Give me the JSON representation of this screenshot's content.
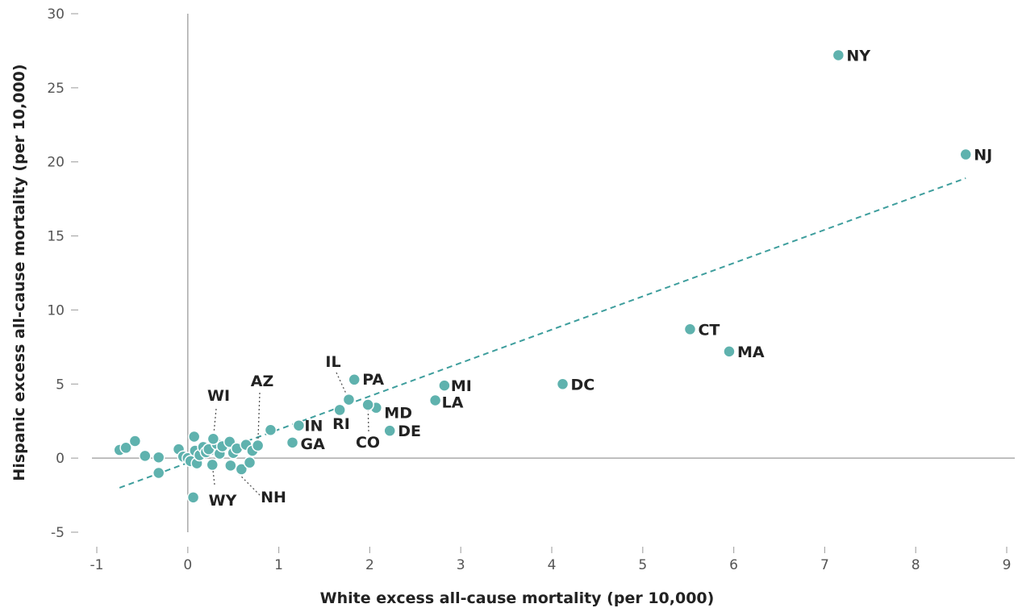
{
  "chart_data": {
    "type": "scatter",
    "xlabel": "White excess all-cause mortality (per 10,000)",
    "ylabel": "Hispanic excess all-cause mortality (per 10,000)",
    "xlim": [
      -1,
      9
    ],
    "ylim": [
      -5,
      30
    ],
    "xticks": [
      "-1",
      "0",
      "1",
      "2",
      "3",
      "4",
      "5",
      "6",
      "7",
      "8",
      "9"
    ],
    "yticks": [
      "-5",
      "0",
      "5",
      "10",
      "15",
      "20",
      "25",
      "30"
    ],
    "trendline": {
      "x": [
        -0.75,
        8.55
      ],
      "y": [
        -2.0,
        18.9
      ]
    },
    "labeled_points": [
      {
        "label": "NY",
        "x": 7.15,
        "y": 27.2
      },
      {
        "label": "NJ",
        "x": 8.55,
        "y": 20.5
      },
      {
        "label": "CT",
        "x": 5.52,
        "y": 8.7
      },
      {
        "label": "MA",
        "x": 5.95,
        "y": 7.2
      },
      {
        "label": "DC",
        "x": 4.12,
        "y": 5.0
      },
      {
        "label": "MI",
        "x": 2.82,
        "y": 4.9
      },
      {
        "label": "LA",
        "x": 2.72,
        "y": 3.9
      },
      {
        "label": "PA",
        "x": 1.83,
        "y": 5.3
      },
      {
        "label": "IL",
        "x": 1.77,
        "y": 3.95
      },
      {
        "label": "MD",
        "x": 2.07,
        "y": 3.4
      },
      {
        "label": "CO",
        "x": 1.98,
        "y": 3.6
      },
      {
        "label": "DE",
        "x": 2.22,
        "y": 1.85
      },
      {
        "label": "RI",
        "x": 1.67,
        "y": 3.25
      },
      {
        "label": "IN",
        "x": 1.22,
        "y": 2.2
      },
      {
        "label": "GA",
        "x": 1.15,
        "y": 1.05
      },
      {
        "label": "AZ",
        "x": 0.77,
        "y": 0.85
      },
      {
        "label": "WI",
        "x": 0.28,
        "y": 1.3
      },
      {
        "label": "WY",
        "x": 0.27,
        "y": -0.45
      },
      {
        "label": "NH",
        "x": 0.47,
        "y": -0.5
      }
    ],
    "other_points": [
      {
        "x": -0.75,
        "y": 0.55
      },
      {
        "x": -0.68,
        "y": 0.7
      },
      {
        "x": -0.58,
        "y": 1.15
      },
      {
        "x": -0.47,
        "y": 0.15
      },
      {
        "x": -0.32,
        "y": 0.05
      },
      {
        "x": -0.32,
        "y": -1.0
      },
      {
        "x": -0.1,
        "y": 0.6
      },
      {
        "x": -0.05,
        "y": 0.1
      },
      {
        "x": 0.0,
        "y": 0.0
      },
      {
        "x": 0.03,
        "y": -0.2
      },
      {
        "x": 0.07,
        "y": 1.45
      },
      {
        "x": 0.08,
        "y": 0.5
      },
      {
        "x": 0.1,
        "y": -0.35
      },
      {
        "x": 0.13,
        "y": 0.2
      },
      {
        "x": 0.17,
        "y": 0.75
      },
      {
        "x": 0.2,
        "y": 0.4
      },
      {
        "x": 0.23,
        "y": 0.6
      },
      {
        "x": 0.32,
        "y": 0.95
      },
      {
        "x": 0.35,
        "y": 0.3
      },
      {
        "x": 0.38,
        "y": 0.8
      },
      {
        "x": 0.46,
        "y": 1.1
      },
      {
        "x": 0.5,
        "y": 0.35
      },
      {
        "x": 0.54,
        "y": 0.65
      },
      {
        "x": 0.59,
        "y": -0.75
      },
      {
        "x": 0.64,
        "y": 0.9
      },
      {
        "x": 0.68,
        "y": -0.3
      },
      {
        "x": 0.71,
        "y": 0.5
      },
      {
        "x": 0.91,
        "y": 1.9
      },
      {
        "x": 0.06,
        "y": -2.65
      }
    ]
  }
}
